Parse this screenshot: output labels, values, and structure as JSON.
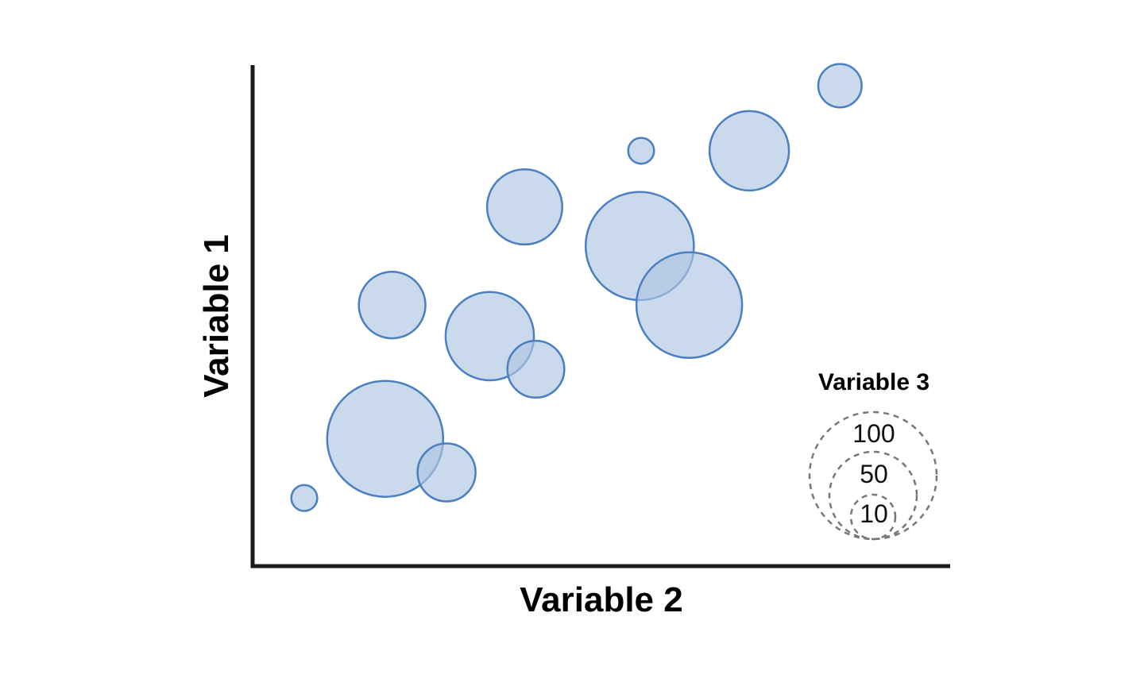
{
  "chart_data": {
    "type": "scatter",
    "subtype": "bubble",
    "title": "",
    "xlabel": "Variable 2",
    "ylabel": "Variable 1",
    "xlim": [
      0,
      100
    ],
    "ylim": [
      0,
      100
    ],
    "grid": false,
    "size_legend": {
      "title": "Variable 3",
      "values": [
        100,
        50,
        10
      ],
      "placement": "bottom-right"
    },
    "series": [
      {
        "points": [
          {
            "x": 7.4,
            "y": 13.6,
            "size": 5
          },
          {
            "x": 19.0,
            "y": 25.4,
            "size": 100
          },
          {
            "x": 27.8,
            "y": 18.7,
            "size": 25
          },
          {
            "x": 20.0,
            "y": 52.1,
            "size": 33
          },
          {
            "x": 34.0,
            "y": 45.9,
            "size": 58
          },
          {
            "x": 40.6,
            "y": 39.3,
            "size": 24
          },
          {
            "x": 39.0,
            "y": 71.7,
            "size": 42
          },
          {
            "x": 55.5,
            "y": 63.9,
            "size": 87
          },
          {
            "x": 62.6,
            "y": 52.1,
            "size": 83
          },
          {
            "x": 55.7,
            "y": 82.9,
            "size": 5
          },
          {
            "x": 71.2,
            "y": 82.9,
            "size": 47
          },
          {
            "x": 84.2,
            "y": 95.9,
            "size": 14
          }
        ]
      }
    ],
    "colors": {
      "bubble_fill": "#aec6e2",
      "bubble_stroke": "#4a7fc1",
      "axis": "#1a1a1a",
      "legend_stroke": "#777777"
    }
  }
}
